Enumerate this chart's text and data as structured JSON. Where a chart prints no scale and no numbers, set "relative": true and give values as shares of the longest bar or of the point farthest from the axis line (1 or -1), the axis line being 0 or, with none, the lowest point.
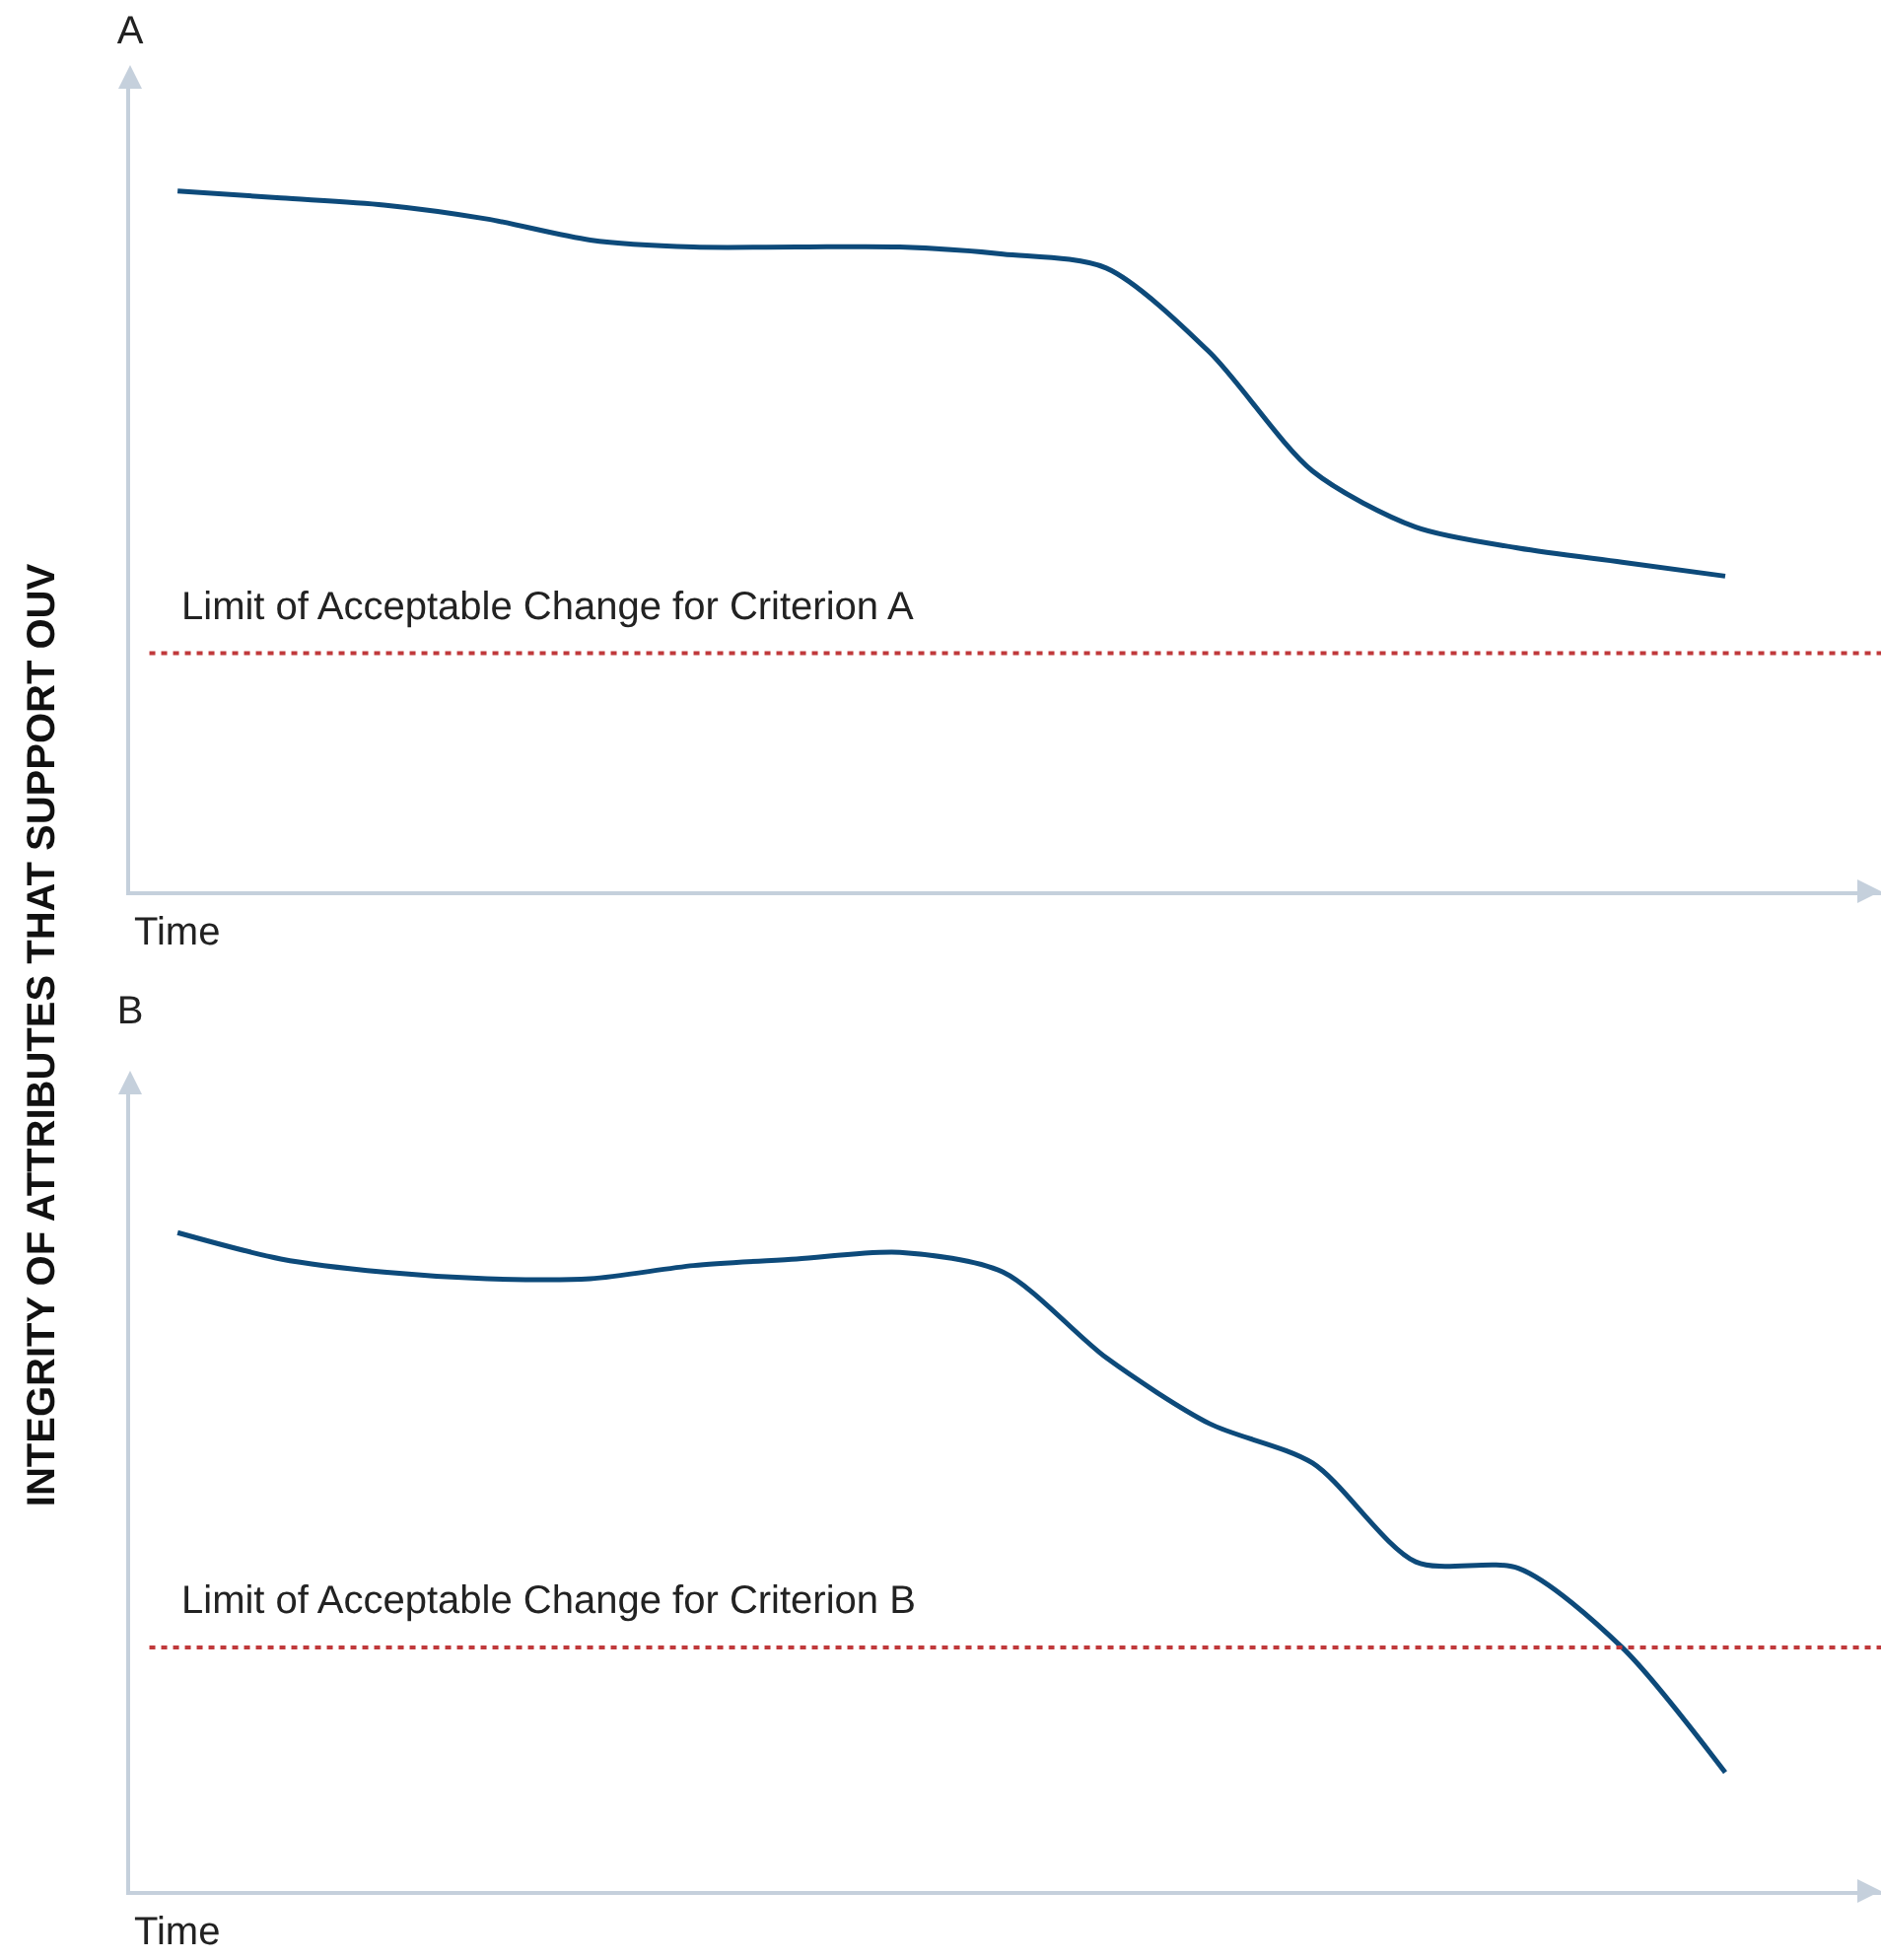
{
  "chart_data": [
    {
      "type": "line",
      "title": "A",
      "ylabel": "INTEGRITY OF ATTRIBUTES THAT SUPPORT OUV",
      "xlabel": "Time",
      "relative": true,
      "line_style": "solid",
      "categories": [
        null,
        null,
        null,
        null,
        null,
        null,
        null,
        null,
        null,
        null,
        null,
        null,
        null,
        null,
        null,
        null
      ],
      "series": [
        {
          "color": "#0d4a7a",
          "values": [
            1.0,
            0.99,
            0.98,
            0.96,
            0.93,
            0.92,
            0.92,
            0.92,
            0.91,
            0.89,
            0.77,
            0.6,
            0.52,
            0.49,
            0.47,
            0.45
          ]
        }
      ],
      "ref_lines": [
        {
          "axis": "y",
          "value": 0.34,
          "label": "Limit of Acceptable Change for Criterion A",
          "color": "#c0393b",
          "line_style": "dotted"
        }
      ]
    },
    {
      "type": "line",
      "title": "B",
      "xlabel": "Time",
      "relative": true,
      "line_style": "solid",
      "categories": [
        null,
        null,
        null,
        null,
        null,
        null,
        null,
        null,
        null,
        null,
        null,
        null,
        null,
        null,
        null,
        null
      ],
      "series": [
        {
          "color": "#0d4a7a",
          "values": [
            1.0,
            0.96,
            0.94,
            0.93,
            0.93,
            0.95,
            0.96,
            0.97,
            0.94,
            0.81,
            0.71,
            0.65,
            0.5,
            0.49,
            0.37,
            0.18
          ]
        }
      ],
      "ref_lines": [
        {
          "axis": "y",
          "value": 0.37,
          "label": "Limit of Acceptable Change for Criterion B",
          "color": "#c0393b",
          "line_style": "dotted"
        }
      ]
    }
  ]
}
